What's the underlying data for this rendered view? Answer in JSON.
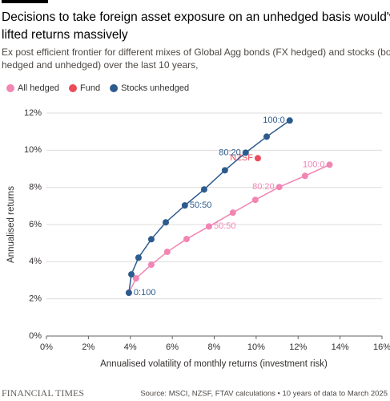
{
  "chart_data": {
    "type": "scatter",
    "title_lines": [
      "Decisions to take foreign asset exposure on an unhedged basis would've",
      "lifted returns massively"
    ],
    "subtitle_lines": [
      "Ex post efficient frontier for different mixes of Global Agg bonds (FX hedged) and stocks (both",
      "hedged and unhedged) over the last 10 years,"
    ],
    "x_label": "Annualised volatility of monthly returns (investment risk)",
    "y_label": "Annualised returns",
    "xlim": [
      0,
      16
    ],
    "xticks": [
      {
        "value": 0,
        "label": "0%"
      },
      {
        "value": 2,
        "label": "2%"
      },
      {
        "value": 4,
        "label": "4%"
      },
      {
        "value": 6,
        "label": "6%"
      },
      {
        "value": 8,
        "label": "8%"
      },
      {
        "value": 10,
        "label": "10%"
      },
      {
        "value": 12,
        "label": "12%"
      },
      {
        "value": 14,
        "label": "14%"
      },
      {
        "value": 16,
        "label": "16%"
      }
    ],
    "ylim": [
      0,
      12
    ],
    "yticks": [
      {
        "value": 0,
        "label": "0%"
      },
      {
        "value": 2,
        "label": "2%"
      },
      {
        "value": 4,
        "label": "4%"
      },
      {
        "value": 6,
        "label": "6%"
      },
      {
        "value": 8,
        "label": "8%"
      },
      {
        "value": 10,
        "label": "10%"
      },
      {
        "value": 12,
        "label": "12%"
      }
    ],
    "grid": true,
    "series": [
      {
        "name": "All hedged",
        "color": "#f185b3",
        "x": [
          3.93,
          4.27,
          5.0,
          5.76,
          6.68,
          7.75,
          8.89,
          9.96,
          11.1,
          12.33,
          13.5
        ],
        "values": [
          2.33,
          3.1,
          3.84,
          4.53,
          5.22,
          5.9,
          6.64,
          7.33,
          8.02,
          8.62,
          9.22
        ],
        "labels": [
          null,
          null,
          null,
          null,
          null,
          "50:50",
          null,
          null,
          "80:20",
          null,
          "100:0"
        ]
      },
      {
        "name": "Fund",
        "color": "#ea4c5a",
        "x": [
          10.08
        ],
        "values": [
          9.57
        ],
        "labels": [
          "NZSF"
        ]
      },
      {
        "name": "Stocks unhedged",
        "color": "#2c5b8e",
        "x": [
          3.93,
          4.05,
          4.39,
          5.0,
          5.69,
          6.6,
          7.52,
          8.51,
          9.5,
          10.5,
          11.6
        ],
        "values": [
          2.33,
          3.32,
          4.22,
          5.21,
          6.12,
          7.03,
          7.89,
          8.92,
          9.87,
          10.73,
          11.6
        ],
        "labels": [
          "0:100",
          null,
          null,
          null,
          null,
          "50:50",
          null,
          null,
          "80:20",
          null,
          "100:0"
        ]
      }
    ],
    "source": "Source: MSCI, NZSF, FTAV calculations • 10 years of data to March 2025",
    "brand": "FINANCIAL TIMES"
  }
}
